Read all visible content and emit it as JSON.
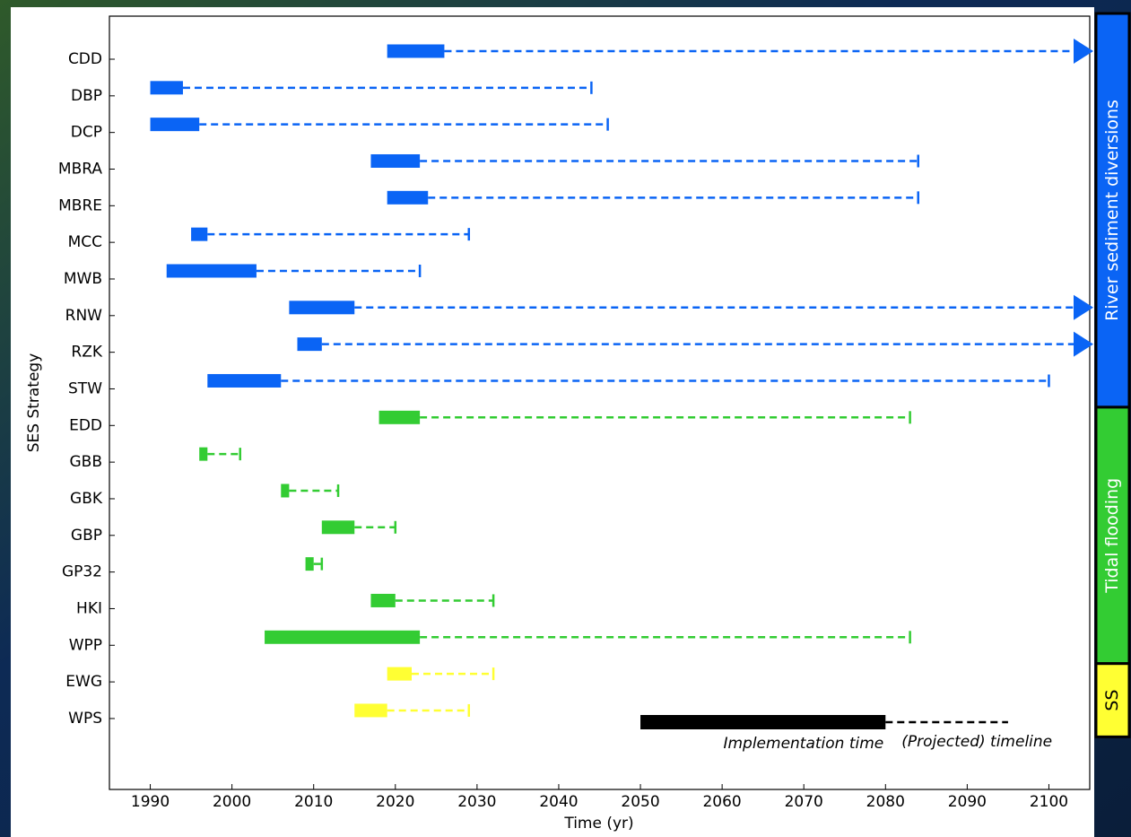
{
  "chart_data": {
    "type": "timeline",
    "xlabel": "Time (yr)",
    "ylabel": "SES Strategy",
    "xlim": [
      1985,
      2105
    ],
    "xticks": [
      1990,
      2000,
      2010,
      2020,
      2030,
      2040,
      2050,
      2060,
      2070,
      2080,
      2090,
      2100
    ],
    "groups": [
      {
        "name": "River sediment diversions",
        "color": "#0a64f5",
        "categories": [
          "CDD",
          "DBP",
          "DCP",
          "MBRA",
          "MBRE",
          "MCC",
          "MWB",
          "RNW",
          "RZK",
          "STW"
        ],
        "start": [
          2019,
          1990,
          1990,
          2017,
          2019,
          1995,
          1992,
          2007,
          2008,
          1997
        ],
        "end": [
          2026,
          1994,
          1996,
          2023,
          2024,
          1997,
          2003,
          2015,
          2011,
          2006
        ],
        "timeline_end": [
          null,
          2044,
          2046,
          2084,
          2084,
          2029,
          2023,
          null,
          null,
          2100
        ]
      },
      {
        "name": "Tidal flooding",
        "color": "#33cc33",
        "categories": [
          "EDD",
          "GBB",
          "GBK",
          "GBP",
          "GP32",
          "HKI",
          "WPP"
        ],
        "start": [
          2018,
          1996,
          2006,
          2011,
          2009,
          2017,
          2004
        ],
        "end": [
          2023,
          1997,
          2007,
          2015,
          2010,
          2020,
          2023
        ],
        "timeline_end": [
          2083,
          2001,
          2013,
          2020,
          2011,
          2032,
          2083
        ]
      },
      {
        "name": "SS",
        "color": "#ffff33",
        "categories": [
          "EWG",
          "WPS"
        ],
        "start": [
          2019,
          2015
        ],
        "end": [
          2022,
          2019
        ],
        "timeline_end": [
          2032,
          2029
        ]
      }
    ],
    "legend": {
      "implementation_label": "Implementation time",
      "timeline_label": "(Projected) timeline",
      "start": 2050,
      "end": 2080,
      "timeline_end": 2095,
      "color": "#000000"
    }
  }
}
